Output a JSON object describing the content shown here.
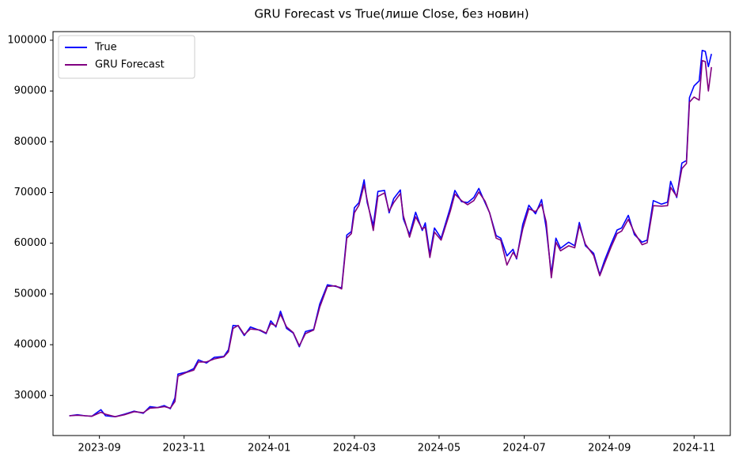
{
  "chart_data": {
    "type": "line",
    "title": "GRU Forecast vs True(лише Close, без новин)",
    "x": [
      2023.608,
      2023.624,
      2023.639,
      2023.652,
      2023.67,
      2023.679,
      2023.698,
      2023.716,
      2023.735,
      2023.753,
      2023.766,
      2023.781,
      2023.794,
      2023.806,
      2023.815,
      2023.821,
      2023.837,
      2023.852,
      2023.861,
      2023.877,
      2023.892,
      2023.911,
      2023.92,
      2023.929,
      2023.939,
      2023.951,
      2023.963,
      2023.982,
      2023.994,
      2024.003,
      2024.013,
      2024.022,
      2024.034,
      2024.047,
      2024.059,
      2024.071,
      2024.087,
      2024.099,
      2024.114,
      2024.13,
      2024.142,
      2024.152,
      2024.161,
      2024.167,
      2024.176,
      2024.186,
      2024.192,
      2024.204,
      2024.213,
      2024.226,
      2024.235,
      2024.244,
      2024.257,
      2024.263,
      2024.275,
      2024.287,
      2024.3,
      2024.306,
      2024.315,
      2024.324,
      2024.337,
      2024.355,
      2024.364,
      2024.377,
      2024.389,
      2024.401,
      2024.411,
      2024.423,
      2024.432,
      2024.445,
      2024.454,
      2024.466,
      2024.478,
      2024.485,
      2024.497,
      2024.509,
      2024.522,
      2024.534,
      2024.543,
      2024.553,
      2024.562,
      2024.571,
      2024.587,
      2024.599,
      2024.608,
      2024.62,
      2024.636,
      2024.648,
      2024.657,
      2024.67,
      2024.682,
      2024.691,
      2024.704,
      2024.716,
      2024.731,
      2024.741,
      2024.753,
      2024.769,
      2024.781,
      2024.787,
      2024.799,
      2024.809,
      2024.818,
      2024.824,
      2024.833,
      2024.843,
      2024.849,
      2024.855,
      2024.861,
      2024.867
    ],
    "series": [
      {
        "name": "True",
        "color": "#0000ff",
        "values": [
          26000,
          26200,
          26000,
          25900,
          27200,
          26000,
          25800,
          26300,
          26900,
          26500,
          27800,
          27600,
          28000,
          27400,
          29500,
          34200,
          34600,
          35300,
          37000,
          36400,
          37500,
          37700,
          39000,
          43800,
          43700,
          41800,
          43500,
          42800,
          42200,
          44700,
          43500,
          46600,
          43200,
          42300,
          39600,
          42600,
          43000,
          48000,
          51800,
          51500,
          51200,
          61600,
          62300,
          67000,
          68000,
          72500,
          68000,
          63500,
          70200,
          70400,
          66000,
          68800,
          70500,
          64800,
          61700,
          66100,
          62500,
          64000,
          57800,
          63000,
          61000,
          67000,
          70400,
          68200,
          68000,
          69000,
          70800,
          68000,
          66000,
          61500,
          61000,
          57500,
          58800,
          56900,
          63700,
          67500,
          65800,
          68600,
          63000,
          54000,
          61000,
          59000,
          60200,
          59500,
          64100,
          59500,
          58000,
          53800,
          56500,
          59800,
          62600,
          63000,
          65500,
          61700,
          60200,
          60600,
          68400,
          67700,
          68100,
          72200,
          69000,
          75800,
          76300,
          88700,
          91000,
          92000,
          98000,
          97800,
          94800,
          97300
        ]
      },
      {
        "name": "GRU Forecast",
        "color": "#800080",
        "values": [
          26000,
          26100,
          26000,
          25900,
          26700,
          26300,
          25800,
          26200,
          26800,
          26600,
          27500,
          27600,
          27800,
          27500,
          28800,
          33800,
          34500,
          35000,
          36600,
          36600,
          37200,
          37600,
          38600,
          43200,
          43800,
          42000,
          43100,
          42900,
          42300,
          44200,
          43700,
          46000,
          43500,
          42400,
          39800,
          42200,
          42900,
          47400,
          51500,
          51600,
          51000,
          61000,
          61900,
          66000,
          67500,
          71500,
          68500,
          62500,
          69200,
          69900,
          66300,
          68000,
          69800,
          65400,
          61200,
          65200,
          62800,
          63200,
          57200,
          62200,
          60600,
          66300,
          69700,
          68400,
          67600,
          68400,
          70100,
          68300,
          66000,
          61000,
          60600,
          55700,
          58200,
          57100,
          62800,
          66800,
          66200,
          67700,
          64200,
          53200,
          60200,
          58500,
          59500,
          59100,
          63500,
          59800,
          57600,
          53600,
          55900,
          59200,
          61900,
          62400,
          64700,
          62100,
          59700,
          60100,
          67400,
          67300,
          67400,
          71000,
          69200,
          74700,
          75700,
          87800,
          88800,
          88200,
          96000,
          95800,
          90000,
          94700
        ]
      }
    ],
    "xlim": [
      2023.576,
      2024.904
    ],
    "ylim": [
      22100,
      101700
    ],
    "xticks": [
      {
        "value": 2023.667,
        "label": "2023-09"
      },
      {
        "value": 2023.833,
        "label": "2023-11"
      },
      {
        "value": 2024.0,
        "label": "2024-01"
      },
      {
        "value": 2024.167,
        "label": "2024-03"
      },
      {
        "value": 2024.333,
        "label": "2024-05"
      },
      {
        "value": 2024.5,
        "label": "2024-07"
      },
      {
        "value": 2024.667,
        "label": "2024-09"
      },
      {
        "value": 2024.833,
        "label": "2024-11"
      }
    ],
    "yticks": [
      30000,
      40000,
      50000,
      60000,
      70000,
      80000,
      90000,
      100000
    ],
    "legend": "upper left"
  }
}
